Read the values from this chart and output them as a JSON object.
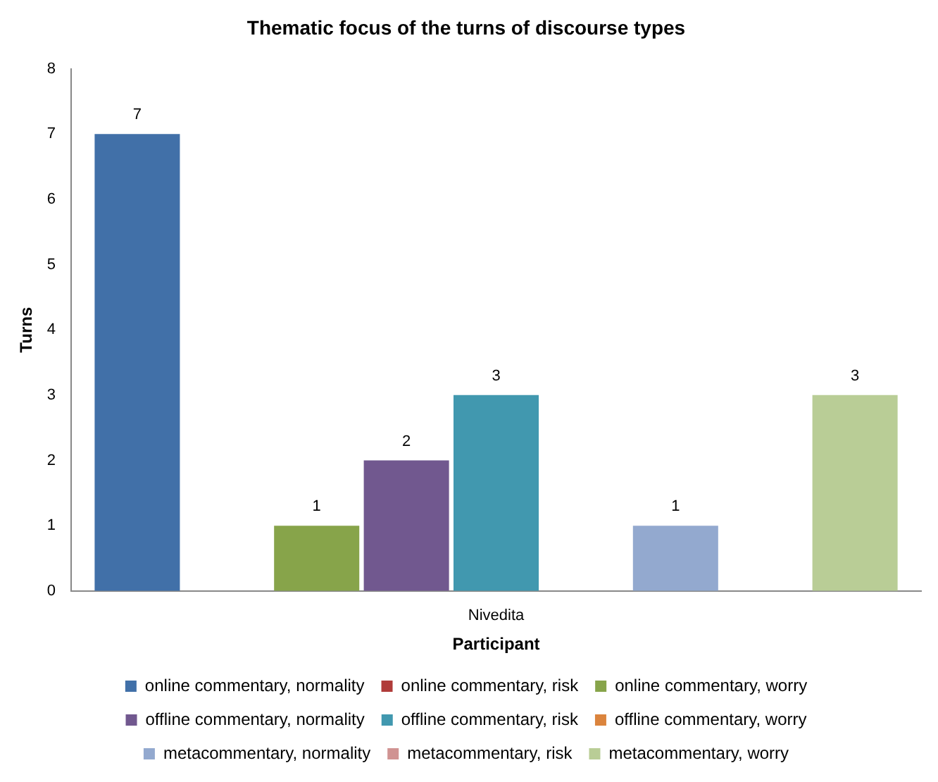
{
  "chart_data": {
    "type": "bar",
    "title": "Thematic focus of the turns of discourse types",
    "xlabel": "Participant",
    "ylabel": "Turns",
    "categories": [
      "Nivedita"
    ],
    "series": [
      {
        "name": "online commentary, normality",
        "color": "#4170a8",
        "values": [
          7
        ]
      },
      {
        "name": "online commentary, risk",
        "color": "#b03c3a",
        "values": [
          null
        ]
      },
      {
        "name": "online commentary, worry",
        "color": "#87a44a",
        "values": [
          1
        ]
      },
      {
        "name": "offline commentary, normality",
        "color": "#71588f",
        "values": [
          2
        ]
      },
      {
        "name": "offline commentary, risk",
        "color": "#4198af",
        "values": [
          3
        ]
      },
      {
        "name": "offline commentary, worry",
        "color": "#db843d",
        "values": [
          null
        ]
      },
      {
        "name": "metacommentary, normality",
        "color": "#93a9cf",
        "values": [
          1
        ]
      },
      {
        "name": "metacommentary, risk",
        "color": "#d09392",
        "values": [
          null
        ]
      },
      {
        "name": "metacommentary, worry",
        "color": "#b9cd96",
        "values": [
          3
        ]
      }
    ],
    "ylim": [
      0,
      8
    ],
    "yticks": [
      0,
      1,
      2,
      3,
      4,
      5,
      6,
      7,
      8
    ],
    "grid": false,
    "legend": "bottom",
    "data_labels": true
  }
}
